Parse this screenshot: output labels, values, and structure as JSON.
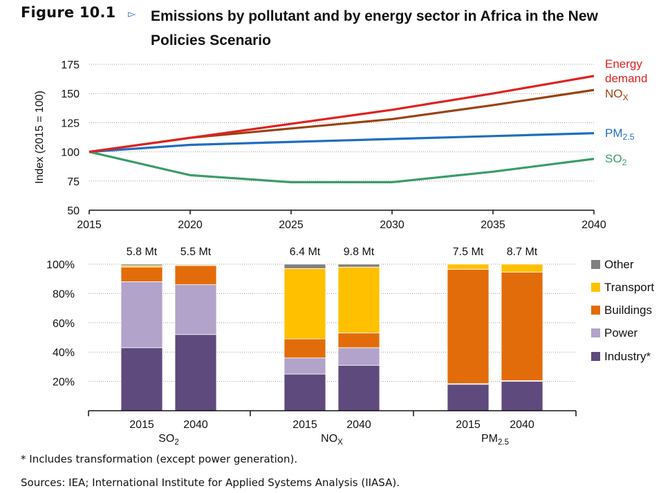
{
  "figure": {
    "label": "Figure 10.1",
    "arrow_icon": "triangle-right-icon",
    "title": "Emissions by pollutant and by energy sector in Africa in the New Policies Scenario"
  },
  "chart_data": [
    {
      "type": "line",
      "ylabel": "Index (2015 = 100)",
      "x": [
        2015,
        2020,
        2025,
        2030,
        2035,
        2040
      ],
      "ylim": [
        50,
        175
      ],
      "yticks": [
        50,
        75,
        100,
        125,
        150,
        175
      ],
      "grid": true,
      "legend": "right-end labels",
      "series": [
        {
          "name": "Energy demand",
          "label_lines": [
            "Energy",
            "demand"
          ],
          "color": "#e02020",
          "values": [
            100,
            112,
            124,
            136,
            150,
            165
          ]
        },
        {
          "name": "NOx",
          "label_main": "NO",
          "label_sub": "X",
          "color": "#9a4212",
          "values": [
            100,
            112,
            120,
            128,
            140,
            153
          ]
        },
        {
          "name": "PM2.5",
          "label_main": "PM",
          "label_sub": "2.5",
          "color": "#1f6dc0",
          "values": [
            100,
            106,
            108.5,
            111,
            113.5,
            116
          ]
        },
        {
          "name": "SO2",
          "label_main": "SO",
          "label_sub": "2",
          "color": "#3a9c68",
          "values": [
            100,
            80,
            74,
            74,
            83,
            94
          ]
        }
      ]
    },
    {
      "type": "bar",
      "stacked": true,
      "ylim": [
        0,
        100
      ],
      "yticks": [
        20,
        40,
        60,
        80,
        100
      ],
      "ytick_labels": [
        "20%",
        "40%",
        "60%",
        "80%",
        "100%"
      ],
      "grid": true,
      "legend": "right",
      "components": [
        {
          "name": "Industry*",
          "color": "#5e4a7d"
        },
        {
          "name": "Power",
          "color": "#b1a3c9"
        },
        {
          "name": "Buildings",
          "color": "#e36c0a"
        },
        {
          "name": "Transport",
          "color": "#ffc000"
        },
        {
          "name": "Other",
          "color": "#808080"
        }
      ],
      "groups": [
        {
          "pollutant_main": "SO",
          "pollutant_sub": "2",
          "bars": [
            {
              "year": "2015",
              "total": "5.8 Mt",
              "values": [
                43,
                45,
                10,
                1,
                1
              ]
            },
            {
              "year": "2040",
              "total": "5.5 Mt",
              "values": [
                52,
                34,
                13,
                0.5,
                0.5
              ]
            }
          ]
        },
        {
          "pollutant_main": "NO",
          "pollutant_sub": "X",
          "bars": [
            {
              "year": "2015",
              "total": "6.4 Mt",
              "values": [
                25,
                11,
                13,
                48,
                3
              ]
            },
            {
              "year": "2040",
              "total": "9.8 Mt",
              "values": [
                31,
                12,
                10,
                45,
                2
              ]
            }
          ]
        },
        {
          "pollutant_main": "PM",
          "pollutant_sub": "2.5",
          "bars": [
            {
              "year": "2015",
              "total": "7.5 Mt",
              "values": [
                18,
                0.5,
                78,
                3.5,
                0
              ]
            },
            {
              "year": "2040",
              "total": "8.7 Mt",
              "values": [
                20,
                0.5,
                74,
                5.5,
                0
              ]
            }
          ]
        }
      ]
    }
  ],
  "footnote": "* Includes transformation (except power generation).",
  "sources": "Sources: IEA; International Institute for Applied Systems Analysis (IIASA)."
}
